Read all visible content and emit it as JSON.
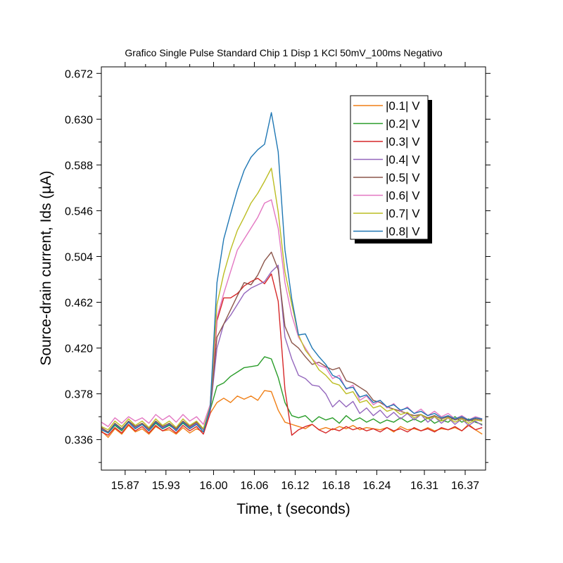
{
  "chart_data": {
    "type": "line",
    "title": "Grafico Single Pulse Standard Chip 1 Disp 1 KCl 50mV_100ms Negativo",
    "xlabel": "Time, t (seconds)",
    "ylabel": "Source-drain current, Ids (µA)",
    "xlim": [
      15.835,
      16.4
    ],
    "ylim": [
      0.308,
      0.678
    ],
    "x_ticks": [
      "15.87",
      "15.93",
      "16.00",
      "16.06",
      "16.12",
      "16.18",
      "16.24",
      "16.31",
      "16.37"
    ],
    "x_tick_values": [
      15.87,
      15.93,
      16.0,
      16.06,
      16.12,
      16.18,
      16.24,
      16.31,
      16.37
    ],
    "y_ticks": [
      "0.336",
      "0.378",
      "0.420",
      "0.462",
      "0.504",
      "0.546",
      "0.588",
      "0.630",
      "0.672"
    ],
    "y_tick_values": [
      0.336,
      0.378,
      0.42,
      0.462,
      0.504,
      0.546,
      0.588,
      0.63,
      0.672
    ],
    "grid": false,
    "legend_position": "top-right",
    "x": [
      15.835,
      15.845,
      15.855,
      15.865,
      15.875,
      15.885,
      15.895,
      15.905,
      15.915,
      15.925,
      15.935,
      15.945,
      15.955,
      15.965,
      15.975,
      15.985,
      15.995,
      16.005,
      16.015,
      16.025,
      16.035,
      16.045,
      16.055,
      16.065,
      16.075,
      16.085,
      16.095,
      16.105,
      16.115,
      16.125,
      16.135,
      16.145,
      16.155,
      16.165,
      16.175,
      16.185,
      16.195,
      16.205,
      16.215,
      16.225,
      16.235,
      16.245,
      16.255,
      16.265,
      16.275,
      16.285,
      16.295,
      16.305,
      16.315,
      16.325,
      16.335,
      16.345,
      16.355,
      16.365,
      16.375,
      16.385,
      16.395
    ],
    "series": [
      {
        "name": "|0.1| V",
        "color": "#f07f16",
        "values": [
          0.344,
          0.338,
          0.346,
          0.341,
          0.349,
          0.343,
          0.346,
          0.341,
          0.348,
          0.344,
          0.345,
          0.341,
          0.347,
          0.342,
          0.346,
          0.343,
          0.36,
          0.37,
          0.374,
          0.37,
          0.376,
          0.373,
          0.376,
          0.372,
          0.381,
          0.38,
          0.363,
          0.352,
          0.35,
          0.348,
          0.346,
          0.35,
          0.345,
          0.347,
          0.345,
          0.348,
          0.346,
          0.349,
          0.345,
          0.347,
          0.346,
          0.345,
          0.347,
          0.343,
          0.348,
          0.345,
          0.346,
          0.344,
          0.347,
          0.344,
          0.346,
          0.345,
          0.347,
          0.344,
          0.35,
          0.345,
          0.341
        ]
      },
      {
        "name": "|0.2| V",
        "color": "#2a9d2a",
        "values": [
          0.346,
          0.342,
          0.349,
          0.344,
          0.352,
          0.346,
          0.35,
          0.344,
          0.351,
          0.346,
          0.349,
          0.345,
          0.351,
          0.346,
          0.35,
          0.345,
          0.363,
          0.385,
          0.388,
          0.394,
          0.398,
          0.402,
          0.403,
          0.404,
          0.412,
          0.41,
          0.393,
          0.37,
          0.358,
          0.356,
          0.358,
          0.352,
          0.357,
          0.354,
          0.356,
          0.351,
          0.358,
          0.353,
          0.356,
          0.352,
          0.355,
          0.351,
          0.354,
          0.352,
          0.356,
          0.352,
          0.355,
          0.352,
          0.356,
          0.351,
          0.354,
          0.352,
          0.357,
          0.352,
          0.355,
          0.352,
          0.35
        ]
      },
      {
        "name": "|0.3| V",
        "color": "#d62728",
        "values": [
          0.343,
          0.34,
          0.347,
          0.342,
          0.35,
          0.344,
          0.348,
          0.342,
          0.349,
          0.344,
          0.347,
          0.342,
          0.349,
          0.344,
          0.348,
          0.341,
          0.36,
          0.445,
          0.466,
          0.466,
          0.47,
          0.477,
          0.481,
          0.484,
          0.479,
          0.488,
          0.463,
          0.382,
          0.34,
          0.345,
          0.348,
          0.35,
          0.345,
          0.342,
          0.346,
          0.344,
          0.348,
          0.345,
          0.347,
          0.344,
          0.346,
          0.343,
          0.347,
          0.344,
          0.346,
          0.343,
          0.347,
          0.344,
          0.346,
          0.343,
          0.347,
          0.345,
          0.348,
          0.344,
          0.349,
          0.345,
          0.347
        ]
      },
      {
        "name": "|0.4| V",
        "color": "#9467bd",
        "values": [
          0.346,
          0.343,
          0.35,
          0.345,
          0.352,
          0.347,
          0.35,
          0.345,
          0.352,
          0.347,
          0.35,
          0.345,
          0.352,
          0.347,
          0.351,
          0.345,
          0.362,
          0.42,
          0.442,
          0.45,
          0.46,
          0.47,
          0.475,
          0.478,
          0.481,
          0.49,
          0.496,
          0.43,
          0.41,
          0.395,
          0.392,
          0.386,
          0.385,
          0.378,
          0.366,
          0.372,
          0.366,
          0.371,
          0.36,
          0.365,
          0.358,
          0.363,
          0.356,
          0.361,
          0.355,
          0.36,
          0.354,
          0.359,
          0.352,
          0.357,
          0.351,
          0.356,
          0.35,
          0.355,
          0.349,
          0.353,
          0.349
        ]
      },
      {
        "name": "|0.5| V",
        "color": "#8c564b",
        "values": [
          0.347,
          0.343,
          0.351,
          0.346,
          0.353,
          0.348,
          0.351,
          0.346,
          0.353,
          0.348,
          0.351,
          0.346,
          0.353,
          0.348,
          0.352,
          0.346,
          0.364,
          0.43,
          0.442,
          0.455,
          0.468,
          0.48,
          0.478,
          0.487,
          0.5,
          0.508,
          0.492,
          0.44,
          0.425,
          0.42,
          0.412,
          0.405,
          0.407,
          0.403,
          0.4,
          0.402,
          0.39,
          0.388,
          0.384,
          0.38,
          0.372,
          0.37,
          0.366,
          0.364,
          0.362,
          0.36,
          0.358,
          0.359,
          0.356,
          0.358,
          0.355,
          0.357,
          0.354,
          0.356,
          0.353,
          0.355,
          0.354
        ]
      },
      {
        "name": "|0.6| V",
        "color": "#e377c2",
        "values": [
          0.352,
          0.348,
          0.356,
          0.351,
          0.357,
          0.353,
          0.356,
          0.351,
          0.359,
          0.354,
          0.358,
          0.352,
          0.359,
          0.353,
          0.357,
          0.35,
          0.368,
          0.448,
          0.47,
          0.49,
          0.51,
          0.52,
          0.53,
          0.54,
          0.553,
          0.556,
          0.53,
          0.48,
          0.45,
          0.43,
          0.42,
          0.41,
          0.404,
          0.402,
          0.392,
          0.395,
          0.382,
          0.386,
          0.372,
          0.376,
          0.368,
          0.372,
          0.365,
          0.369,
          0.362,
          0.366,
          0.36,
          0.364,
          0.358,
          0.362,
          0.357,
          0.36,
          0.355,
          0.358,
          0.354,
          0.357,
          0.355
        ]
      },
      {
        "name": "|0.7| V",
        "color": "#bcbd22",
        "values": [
          0.348,
          0.345,
          0.353,
          0.348,
          0.355,
          0.349,
          0.353,
          0.347,
          0.355,
          0.349,
          0.353,
          0.347,
          0.355,
          0.349,
          0.353,
          0.346,
          0.366,
          0.46,
          0.488,
          0.51,
          0.528,
          0.54,
          0.553,
          0.562,
          0.573,
          0.585,
          0.545,
          0.49,
          0.46,
          0.432,
          0.418,
          0.41,
          0.4,
          0.395,
          0.388,
          0.386,
          0.378,
          0.38,
          0.37,
          0.372,
          0.365,
          0.367,
          0.362,
          0.364,
          0.359,
          0.361,
          0.356,
          0.359,
          0.355,
          0.357,
          0.353,
          0.356,
          0.352,
          0.355,
          0.351,
          0.354,
          0.353
        ]
      },
      {
        "name": "|0.8| V",
        "color": "#1f77b4",
        "values": [
          0.345,
          0.342,
          0.35,
          0.345,
          0.352,
          0.346,
          0.35,
          0.344,
          0.352,
          0.346,
          0.35,
          0.344,
          0.352,
          0.346,
          0.35,
          0.343,
          0.365,
          0.48,
          0.52,
          0.543,
          0.565,
          0.583,
          0.595,
          0.602,
          0.607,
          0.636,
          0.6,
          0.51,
          0.465,
          0.432,
          0.433,
          0.42,
          0.412,
          0.405,
          0.395,
          0.392,
          0.383,
          0.384,
          0.375,
          0.377,
          0.37,
          0.372,
          0.366,
          0.368,
          0.363,
          0.365,
          0.36,
          0.362,
          0.358,
          0.36,
          0.356,
          0.358,
          0.355,
          0.357,
          0.354,
          0.356,
          0.355
        ]
      }
    ]
  }
}
